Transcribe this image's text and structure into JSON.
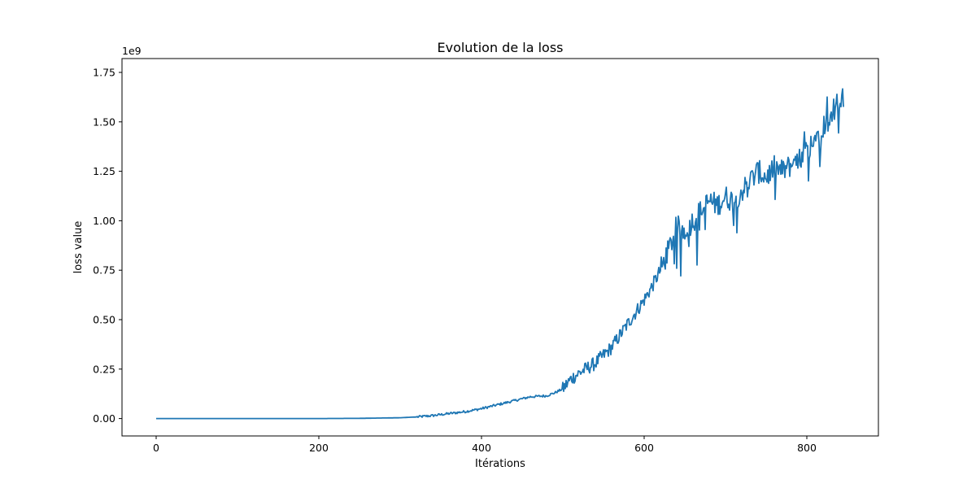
{
  "chart_data": {
    "type": "line",
    "title": "Evolution de la loss",
    "xlabel": "Itérations",
    "ylabel": "loss value",
    "y_offset_label": "1e9",
    "xlim": [
      -42,
      888
    ],
    "ylim": [
      -0.088,
      1.82
    ],
    "y_scale": 1000000000,
    "x_ticks": [
      0,
      200,
      400,
      600,
      800
    ],
    "x_tick_labels": [
      "0",
      "200",
      "400",
      "600",
      "800"
    ],
    "y_ticks": [
      0,
      0.25,
      0.5,
      0.75,
      1.0,
      1.25,
      1.5,
      1.75
    ],
    "y_tick_labels": [
      "0.00",
      "0.25",
      "0.50",
      "0.75",
      "1.00",
      "1.25",
      "1.50",
      "1.75"
    ],
    "grid": false,
    "legend": false,
    "series": [
      {
        "color": "#1f77b4",
        "x": [
          0,
          100,
          200,
          250,
          300,
          320,
          340,
          360,
          380,
          400,
          420,
          440,
          460,
          480,
          490,
          500,
          510,
          520,
          540,
          560,
          580,
          600,
          610,
          620,
          630,
          640,
          650,
          660,
          670,
          680,
          690,
          700,
          710,
          720,
          730,
          740,
          750,
          760,
          770,
          780,
          790,
          800,
          810,
          820,
          830,
          840,
          845
        ],
        "y": [
          0,
          0,
          0,
          0.001,
          0.004,
          0.008,
          0.015,
          0.025,
          0.035,
          0.05,
          0.07,
          0.09,
          0.11,
          0.115,
          0.13,
          0.15,
          0.2,
          0.23,
          0.28,
          0.36,
          0.48,
          0.6,
          0.67,
          0.75,
          0.85,
          0.97,
          0.95,
          1.0,
          1.05,
          1.1,
          1.08,
          1.12,
          1.1,
          1.15,
          1.2,
          1.25,
          1.22,
          1.27,
          1.25,
          1.28,
          1.3,
          1.35,
          1.42,
          1.48,
          1.55,
          1.6,
          1.63
        ]
      }
    ]
  }
}
